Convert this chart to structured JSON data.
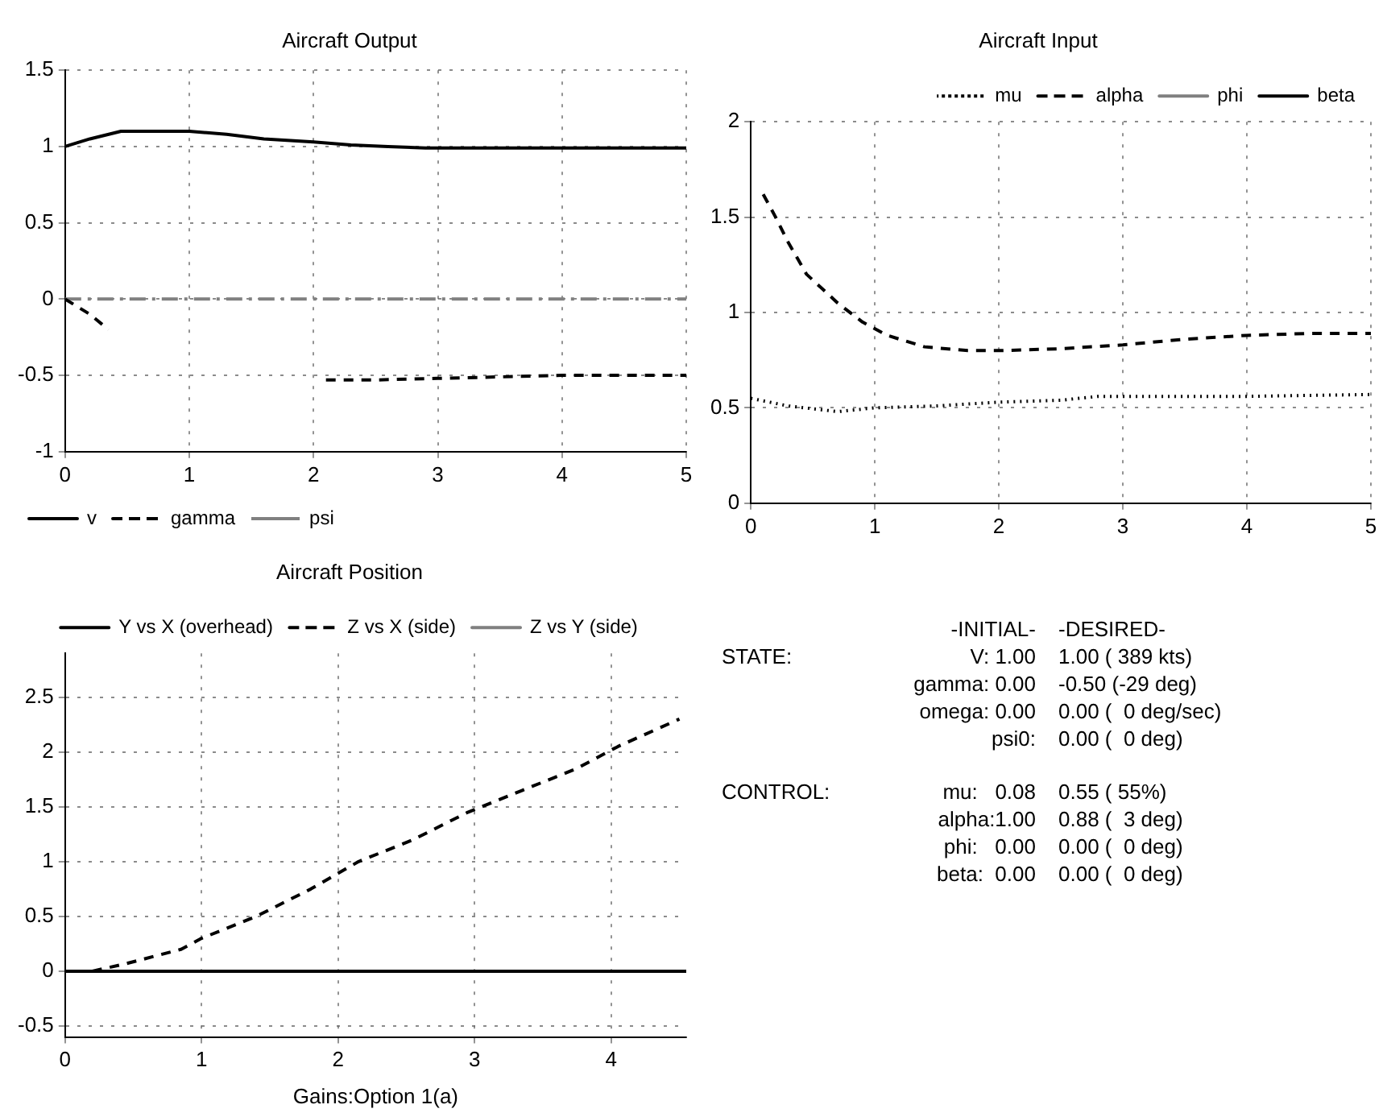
{
  "chart_data": [
    {
      "type": "line",
      "title": "Aircraft Output",
      "xlim": [
        0,
        5
      ],
      "xticks": [
        0,
        1,
        2,
        3,
        4,
        5
      ],
      "ylim": [
        -1,
        1.5
      ],
      "yticks": [
        -1,
        -0.5,
        0,
        0.5,
        1,
        1.5
      ],
      "grid": true,
      "legend": "bottom left",
      "marker": "none",
      "series": [
        {
          "name": "v",
          "color": "#000000",
          "line_style": "solid",
          "x": [
            0,
            0.2,
            0.45,
            0.7,
            1,
            1.3,
            1.6,
            2,
            2.3,
            2.6,
            2.9,
            3.5,
            4,
            4.5,
            5
          ],
          "values": [
            1,
            1.05,
            1.1,
            1.1,
            1.1,
            1.08,
            1.05,
            1.03,
            1.01,
            1,
            0.99,
            0.99,
            0.99,
            0.99,
            0.99
          ]
        },
        {
          "name": "gamma",
          "color": "#000000",
          "line_style": "dashed",
          "x": [
            0,
            0.2,
            0.35,
            0.5,
            2.1,
            2.5,
            3,
            3.5,
            4,
            4.5,
            5
          ],
          "values": [
            0,
            -0.1,
            -0.2,
            null,
            -0.53,
            -0.53,
            -0.52,
            -0.51,
            -0.5,
            -0.5,
            -0.5
          ]
        },
        {
          "name": "psi",
          "color": "#808080",
          "line_style": "dashdot",
          "x": [
            0,
            5
          ],
          "values": [
            0,
            0
          ]
        }
      ]
    },
    {
      "type": "line",
      "title": "Aircraft Input",
      "xlim": [
        0,
        5
      ],
      "xticks": [
        0,
        1,
        2,
        3,
        4,
        5
      ],
      "ylim": [
        0,
        2
      ],
      "yticks": [
        0,
        0.5,
        1,
        1.5,
        2
      ],
      "grid": true,
      "legend": "top right",
      "marker": "none",
      "series": [
        {
          "name": "mu",
          "color": "#000000",
          "line_style": "dotted",
          "x": [
            0,
            0.3,
            0.7,
            1,
            1.5,
            2,
            2.5,
            2.8,
            3,
            4,
            5
          ],
          "values": [
            0.55,
            0.51,
            0.48,
            0.5,
            0.51,
            0.53,
            0.54,
            0.56,
            0.56,
            0.56,
            0.57
          ]
        },
        {
          "name": "alpha",
          "color": "#000000",
          "line_style": "dashed",
          "x": [
            0.1,
            0.2,
            0.3,
            0.45,
            0.7,
            0.9,
            1.1,
            1.4,
            1.75,
            2,
            2.5,
            3,
            3.5,
            4,
            4.5,
            5
          ],
          "values": [
            1.62,
            1.5,
            1.37,
            1.2,
            1.05,
            0.95,
            0.88,
            0.82,
            0.8,
            0.8,
            0.81,
            0.83,
            0.86,
            0.88,
            0.89,
            0.89
          ]
        },
        {
          "name": "phi",
          "color": "#808080",
          "line_style": "solid"
        },
        {
          "name": "beta",
          "color": "#000000",
          "line_style": "solid"
        }
      ]
    },
    {
      "type": "line",
      "title": "Aircraft Position",
      "xlabel": "Gains:Option 1(a)",
      "xlim": [
        0,
        4.55
      ],
      "xticks": [
        0,
        1,
        2,
        3,
        4
      ],
      "ylim": [
        -0.6,
        2.9
      ],
      "yticks": [
        -0.5,
        0,
        0.5,
        1,
        1.5,
        2,
        2.5
      ],
      "grid": true,
      "legend": "top",
      "marker": "none",
      "series": [
        {
          "name": "Y vs X (overhead)",
          "color": "#000000",
          "line_style": "solid",
          "x": [
            0,
            4.55
          ],
          "values": [
            0,
            0
          ]
        },
        {
          "name": "Z vs X (side)",
          "color": "#000000",
          "line_style": "dashed",
          "x": [
            0.2,
            0.45,
            0.85,
            1,
            1.4,
            1.8,
            2.15,
            2.55,
            2.95,
            3.35,
            3.75,
            4.05,
            4.5
          ],
          "values": [
            0,
            0.07,
            0.2,
            0.3,
            0.5,
            0.75,
            1,
            1.2,
            1.45,
            1.65,
            1.85,
            2.05,
            2.3
          ]
        },
        {
          "name": "Z vs Y (side)",
          "color": "#808080",
          "line_style": "solid"
        }
      ]
    },
    {
      "type": "other",
      "annotations": [
        "\t-INITIAL-\t-DESIRED-",
        "STATE:\tV: 1.00\t1.00 ( 389 kts)",
        "\tgamma: 0.00\t-0.50 (-29 deg)",
        "\tomega: 0.00\t0.00 (  0 deg/sec)",
        "\tpsi0:\t0.00 (  0 deg)",
        "CONTROL:\tmu:   0.08\t0.55 ( 55%)",
        "\talpha:1.00\t0.88 (  3 deg)",
        "\tphi:   0.00\t0.00 (  0 deg)",
        "\tbeta:  0.00\t0.00 (  0 deg)"
      ]
    }
  ]
}
